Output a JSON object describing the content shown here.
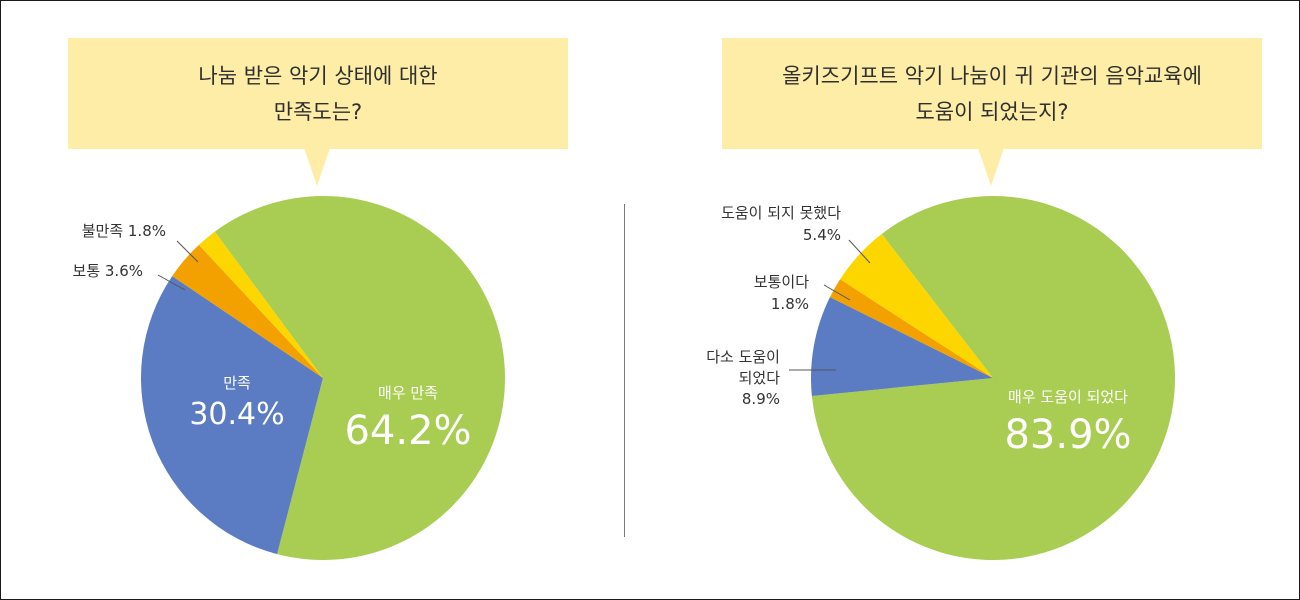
{
  "colors": {
    "very_satisfied": "#a8cd52",
    "satisfied": "#5b7cc2",
    "normal": "#f2a100",
    "dissatisfied": "#fdd600",
    "callout_bg": "#fdeda6"
  },
  "left": {
    "question_line1": "나눔 받은 악기 상태에 대한",
    "question_line2": "만족도는?"
  },
  "right": {
    "question_line1": "올키즈기프트 악기 나눔이 귀 기관의 음악교육에",
    "question_line2": "도움이 되었는지?"
  },
  "chart_data": [
    {
      "type": "pie",
      "title": "나눔 받은 악기 상태에 대한 만족도는?",
      "slices": [
        {
          "label": "매우 만족",
          "value": 64.2,
          "value_text": "64.2%",
          "color": "#a8cd52"
        },
        {
          "label": "만족",
          "value": 30.4,
          "value_text": "30.4%",
          "color": "#5b7cc2"
        },
        {
          "label": "보통",
          "value": 3.6,
          "value_text": "3.6%",
          "color": "#f2a100"
        },
        {
          "label": "불만족",
          "value": 1.8,
          "value_text": "1.8%",
          "color": "#fdd600"
        }
      ]
    },
    {
      "type": "pie",
      "title": "올키즈기프트 악기 나눔이 귀 기관의 음악교육에 도움이 되었는지?",
      "slices": [
        {
          "label": "매우 도움이 되었다",
          "value": 83.9,
          "value_text": "83.9%",
          "color": "#a8cd52"
        },
        {
          "label": "다소 도움이 되었다",
          "value": 8.9,
          "value_text": "8.9%",
          "color": "#5b7cc2"
        },
        {
          "label": "보통이다",
          "value": 1.8,
          "value_text": "1.8%",
          "color": "#f2a100"
        },
        {
          "label": "도움이 되지 못했다",
          "value": 5.4,
          "value_text": "5.4%",
          "color": "#fdd600"
        }
      ]
    }
  ]
}
